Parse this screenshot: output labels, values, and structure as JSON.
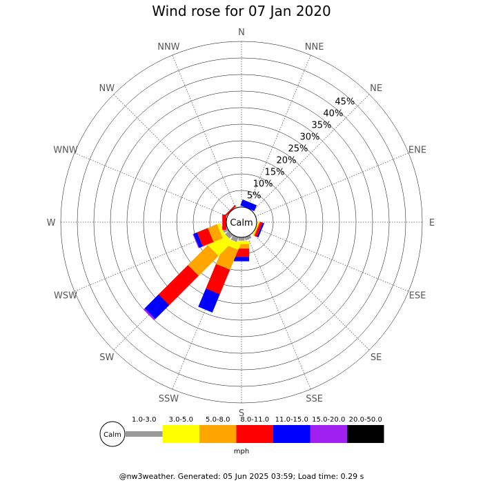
{
  "chart_data": {
    "type": "windrose",
    "title": "Wind rose for 07 Jan 2020",
    "calm_label": "Calm",
    "unit": "mph",
    "directions": [
      "N",
      "NNE",
      "NE",
      "ENE",
      "E",
      "ESE",
      "SE",
      "SSE",
      "S",
      "SSW",
      "SW",
      "WSW",
      "W",
      "WNW",
      "NW",
      "NNW"
    ],
    "radial_ticks": [
      "5%",
      "10%",
      "15%",
      "20%",
      "25%",
      "30%",
      "35%",
      "40%",
      "45%"
    ],
    "rmax_percent": 50,
    "bins": [
      {
        "label": "1.0-3.0",
        "color": "#999999"
      },
      {
        "label": "3.0-5.0",
        "color": "#ffff00"
      },
      {
        "label": "5.0-8.0",
        "color": "#ffa500"
      },
      {
        "label": "8.0-11.0",
        "color": "#ff0000"
      },
      {
        "label": "11.0-15.0",
        "color": "#0000ff"
      },
      {
        "label": "15.0-20.0",
        "color": "#a020f0"
      },
      {
        "label": "20.0-50.0",
        "color": "#000000"
      }
    ],
    "series": [
      {
        "direction": "NNE",
        "values": [
          0,
          0,
          0,
          0,
          1.9,
          0,
          0
        ]
      },
      {
        "direction": "ESE",
        "values": [
          0,
          0.3,
          0.3,
          0.8,
          0.5,
          0,
          0
        ]
      },
      {
        "direction": "SSE",
        "values": [
          1.0,
          0,
          0,
          0,
          0,
          0,
          0
        ]
      },
      {
        "direction": "S",
        "values": [
          1.0,
          1.0,
          1.4,
          2.5,
          1.3,
          0,
          0
        ]
      },
      {
        "direction": "SSW",
        "values": [
          1.5,
          2.0,
          6.5,
          8.0,
          6.0,
          0,
          0
        ]
      },
      {
        "direction": "SW",
        "values": [
          1.5,
          6.0,
          8.5,
          12.5,
          6.0,
          0.5,
          0
        ]
      },
      {
        "direction": "WSW",
        "values": [
          1.5,
          1.0,
          3.0,
          3.5,
          1.2,
          0.2,
          0
        ]
      },
      {
        "direction": "W",
        "values": [
          0,
          0,
          0,
          1.2,
          0,
          0,
          0
        ]
      },
      {
        "direction": "NW",
        "values": [
          0,
          0,
          0,
          0.5,
          0,
          0,
          0
        ]
      }
    ],
    "grid": true
  },
  "footer": "@nw3weather. Generated: 05 Jun 2025 03:59; Load time: 0.29 s"
}
